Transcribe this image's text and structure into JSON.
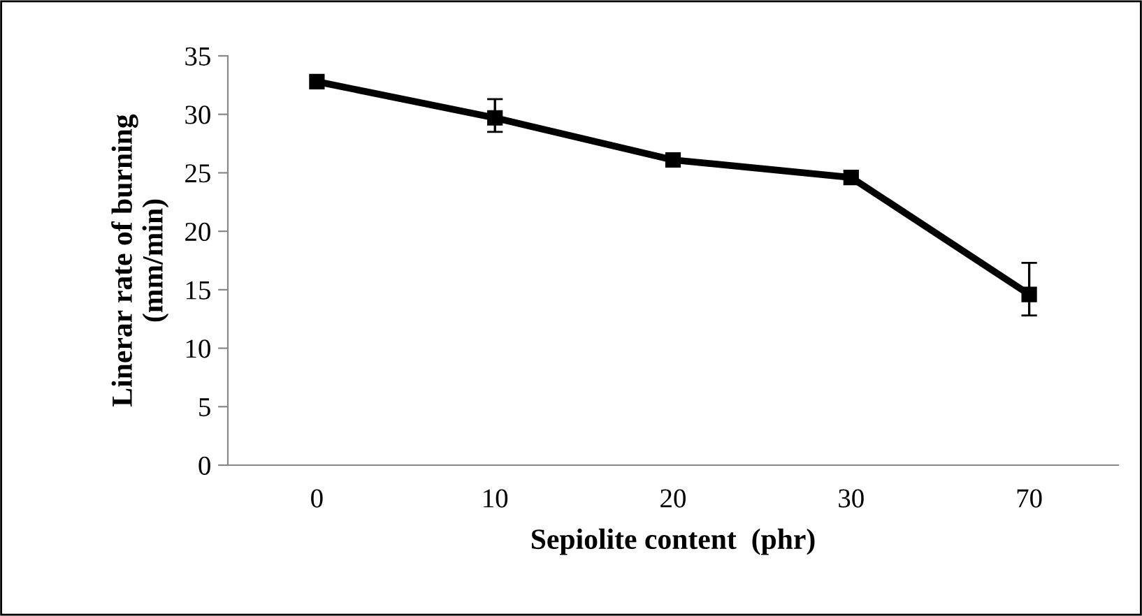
{
  "chart_data": {
    "type": "line",
    "xlabel": "Sepiolite content  (phr)",
    "ylabel": "Linerar rate of burning\n(mm/min)",
    "categories": [
      "0",
      "10",
      "20",
      "30",
      "70"
    ],
    "series": [
      {
        "color": "#000000",
        "values": [
          32.8,
          29.7,
          26.1,
          24.6,
          14.6
        ],
        "errors": [
          null,
          [
            28.5,
            31.3
          ],
          null,
          null,
          [
            12.8,
            17.3
          ]
        ]
      }
    ],
    "ylim": [
      0,
      35
    ],
    "yticks": [
      0,
      5,
      10,
      15,
      20,
      25,
      30,
      35
    ],
    "grid": false,
    "legend": false,
    "marker": "square",
    "line_style": "solid"
  }
}
